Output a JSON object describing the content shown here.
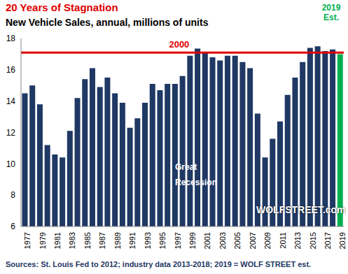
{
  "chart_data": {
    "type": "bar",
    "title": "20 Years of Stagnation",
    "subtitle": "New Vehicle Sales, annual, millions of units",
    "categories": [
      "1977",
      null,
      "1979",
      null,
      "1981",
      null,
      "1983",
      null,
      "1985",
      null,
      "1987",
      null,
      "1989",
      null,
      "1991",
      null,
      "1993",
      null,
      "1995",
      null,
      "1997",
      null,
      "1999",
      null,
      "2001",
      null,
      "2003",
      null,
      "2005",
      null,
      "2007",
      null,
      "2009",
      null,
      "2011",
      null,
      "2013",
      null,
      "2015",
      null,
      "2017",
      null,
      "2019"
    ],
    "values": [
      14.5,
      15.0,
      13.8,
      11.2,
      10.6,
      10.4,
      12.1,
      14.2,
      15.4,
      16.1,
      14.9,
      15.5,
      14.5,
      13.9,
      12.3,
      12.9,
      13.9,
      15.1,
      14.7,
      15.1,
      15.1,
      15.6,
      16.9,
      17.35,
      17.1,
      16.8,
      16.6,
      16.9,
      16.9,
      16.5,
      16.1,
      13.2,
      10.4,
      11.6,
      12.7,
      14.4,
      15.5,
      16.5,
      17.4,
      17.5,
      17.2,
      17.3,
      17.0
    ],
    "colors": [
      "#1f3864",
      "#1f3864",
      "#1f3864",
      "#1f3864",
      "#1f3864",
      "#1f3864",
      "#1f3864",
      "#1f3864",
      "#1f3864",
      "#1f3864",
      "#1f3864",
      "#1f3864",
      "#1f3864",
      "#1f3864",
      "#1f3864",
      "#1f3864",
      "#1f3864",
      "#1f3864",
      "#1f3864",
      "#1f3864",
      "#1f3864",
      "#1f3864",
      "#1f3864",
      "#1f3864",
      "#1f3864",
      "#1f3864",
      "#1f3864",
      "#1f3864",
      "#1f3864",
      "#1f3864",
      "#1f3864",
      "#1f3864",
      "#1f3864",
      "#1f3864",
      "#1f3864",
      "#1f3864",
      "#1f3864",
      "#1f3864",
      "#1f3864",
      "#1f3864",
      "#1f3864",
      "#1f3864",
      "#00b050"
    ],
    "ylim": [
      6,
      18
    ],
    "yticks": [
      6,
      8,
      10,
      12,
      14,
      16,
      18
    ],
    "grid": false,
    "reference_line": {
      "value": 17.1,
      "label": "2000",
      "color": "#e00000"
    },
    "annotations": [
      {
        "text": "2019 Est.",
        "color": "#00b050"
      },
      {
        "text": "Great Recession",
        "color": "#ffffff"
      },
      {
        "text": "WOLFSTREET.com",
        "color": "#ffffff"
      }
    ],
    "footnote": "Sources: St. Louis Fed to 2012; industry data 2013-2018; 2019 = WOLF STREET est."
  }
}
